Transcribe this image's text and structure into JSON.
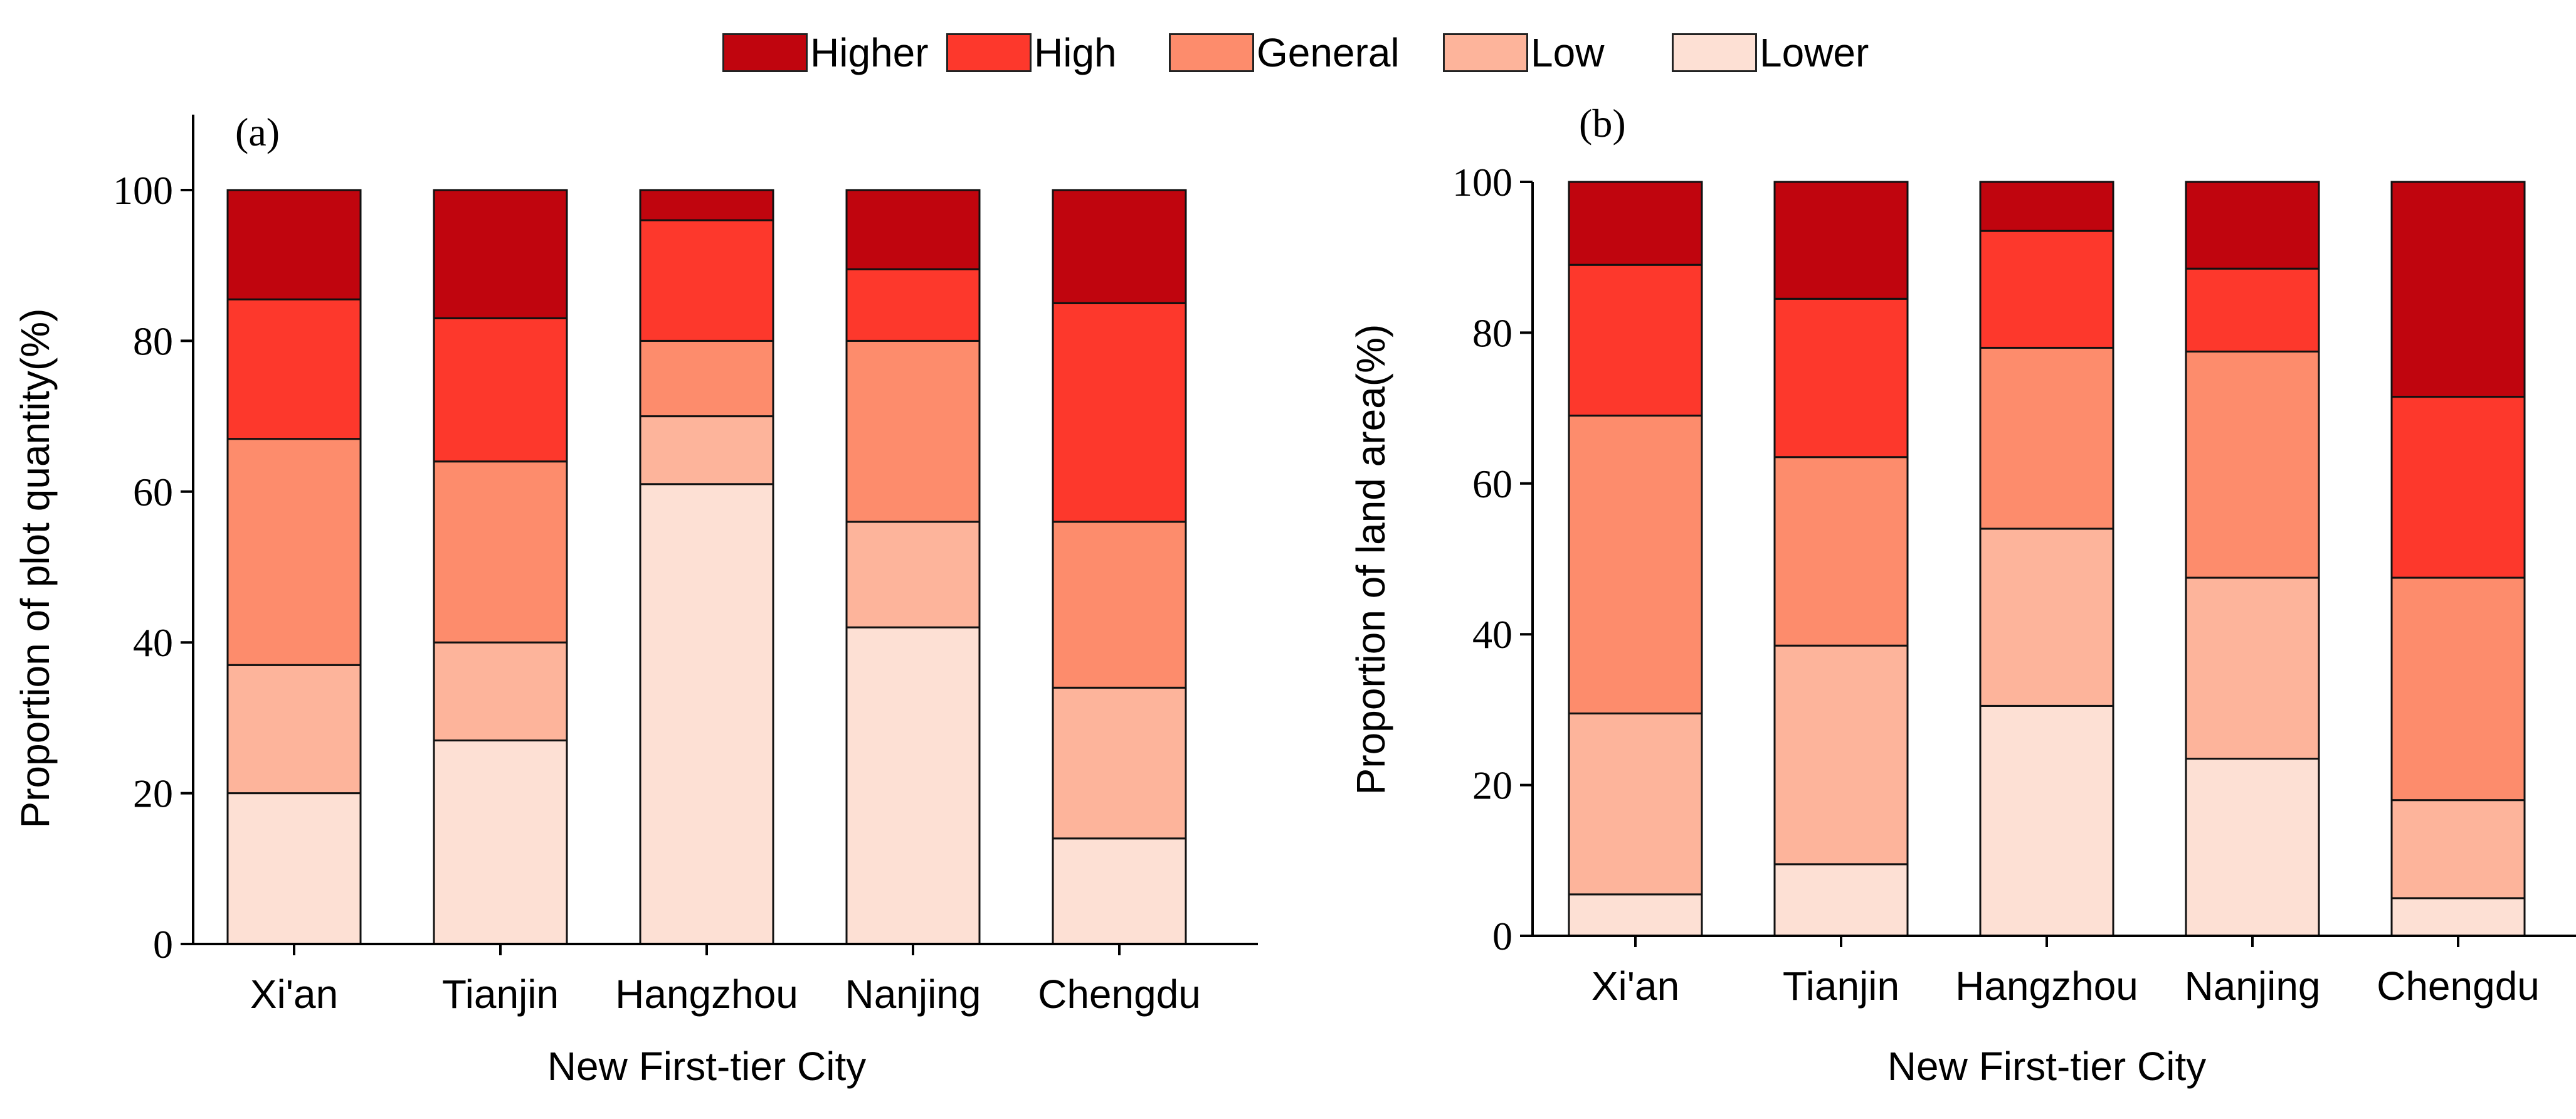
{
  "legend": {
    "items": [
      {
        "label": "Higher",
        "color": "#c0050e"
      },
      {
        "label": "High",
        "color": "#fd382c"
      },
      {
        "label": "General",
        "color": "#fd8c6c"
      },
      {
        "label": "Low",
        "color": "#fdb49b"
      },
      {
        "label": "Lower",
        "color": "#fde0d4"
      }
    ]
  },
  "chart_data": [
    {
      "type": "bar",
      "stacked": true,
      "panel_label": "(a)",
      "categories": [
        "Xi'an",
        "Tianjin",
        "Hangzhou",
        "Nanjing",
        "Chengdu"
      ],
      "series": [
        {
          "name": "Lower",
          "values": [
            20,
            27,
            61,
            42,
            14
          ]
        },
        {
          "name": "Low",
          "values": [
            17,
            13,
            9,
            14,
            20
          ]
        },
        {
          "name": "General",
          "values": [
            30,
            24,
            10,
            24,
            22
          ]
        },
        {
          "name": "High",
          "values": [
            18.5,
            19,
            16,
            9.5,
            29
          ]
        },
        {
          "name": "Higher",
          "values": [
            14.5,
            17,
            4,
            10.5,
            15
          ]
        }
      ],
      "xlabel": "New First-tier City",
      "ylabel": "Proportion of plot quantity(%)",
      "ylim": [
        0,
        110
      ],
      "yticks": [
        0,
        20,
        40,
        60,
        80,
        100
      ],
      "ytick_labels": [
        "0",
        "20",
        "40",
        "60",
        "80",
        "100"
      ]
    },
    {
      "type": "bar",
      "stacked": true,
      "panel_label": "(b)",
      "categories": [
        "Xi'an",
        "Tianjin",
        "Hangzhou",
        "Nanjing",
        "Chengdu"
      ],
      "series": [
        {
          "name": "Lower",
          "values": [
            5.5,
            9.5,
            30.5,
            23.5,
            5
          ]
        },
        {
          "name": "Low",
          "values": [
            24,
            29,
            23.5,
            24,
            13
          ]
        },
        {
          "name": "General",
          "values": [
            39.5,
            25,
            24,
            30,
            29.5
          ]
        },
        {
          "name": "High",
          "values": [
            20,
            21,
            15.5,
            11,
            24
          ]
        },
        {
          "name": "Higher",
          "values": [
            11,
            15.5,
            6.5,
            11.5,
            28.5
          ]
        }
      ],
      "xlabel": "New First-tier City",
      "ylabel": "Proportion of land area(%)",
      "ylim": [
        0,
        100
      ],
      "yticks": [
        0,
        20,
        40,
        60,
        80,
        100
      ],
      "ytick_labels": [
        "0",
        "20",
        "40",
        "60",
        "80",
        "100"
      ]
    }
  ]
}
